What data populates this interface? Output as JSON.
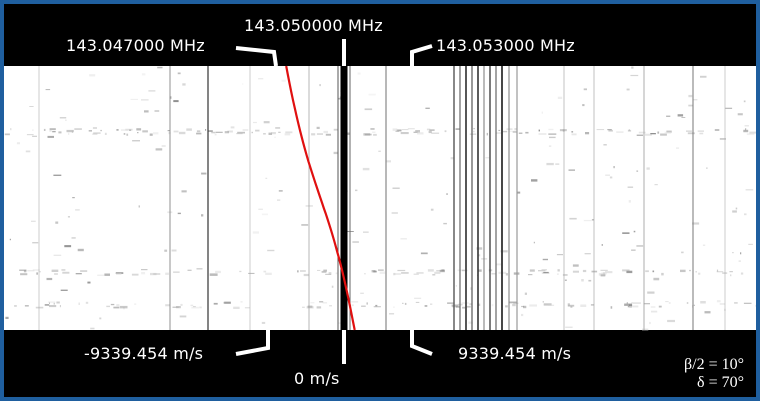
{
  "chart_data": {
    "type": "heatmap",
    "title": "",
    "frequency_labels": {
      "left": "143.047000 MHz",
      "center": "143.050000 MHz",
      "right": "143.053000 MHz"
    },
    "velocity_labels": {
      "left": "-9339.454 m/s",
      "center": "0 m/s",
      "right": "9339.454 m/s"
    },
    "x_frequency_mhz": [
      143.047,
      143.05,
      143.053
    ],
    "x_velocity_ms": [
      -9339.454,
      0,
      9339.454
    ],
    "doppler_curve": {
      "color": "#e01010",
      "frequency_start_mhz": 143.04745,
      "frequency_end_mhz": 143.05047
    },
    "center_line_color": "#000000"
  },
  "params": {
    "beta": "β/2 = 10°",
    "delta": "δ = 70°"
  }
}
